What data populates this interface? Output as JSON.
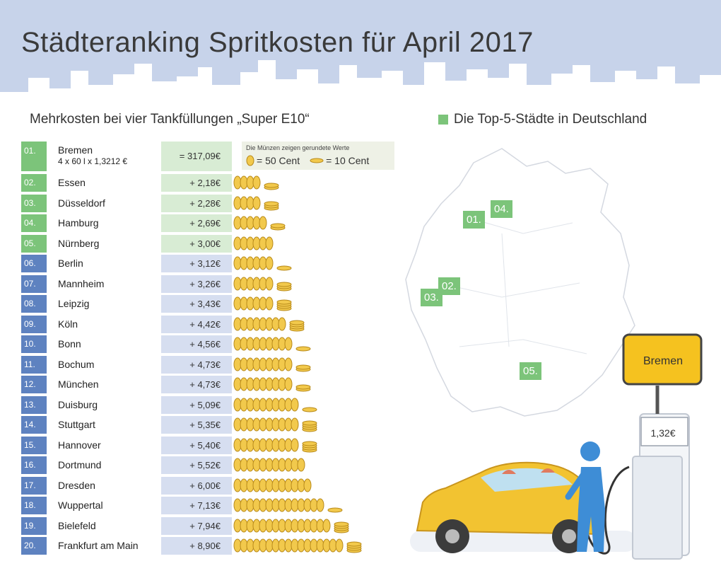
{
  "title": "Städteranking Spritkosten für April 2017",
  "subtitle": "Mehrkosten bei vier Tankfüllungen „Super E10“",
  "legend": "Die Top-5-Städte in Deutschland",
  "coin_note": {
    "small": "Die Münzen zeigen gerundete Werte",
    "big_coin": "= 50 Cent",
    "small_coin": "= 10 Cent"
  },
  "sign": "Bremen",
  "pump_price": "1,32€",
  "colors": {
    "top5": "#7cc47a",
    "top5_light": "#d8ecd4",
    "rest": "#5e82c0",
    "rest_light": "#d6def0",
    "coin": "#f2c94c"
  },
  "chart_data": {
    "type": "table",
    "title": "Städteranking Spritkosten für April 2017",
    "subtitle": "Mehrkosten bei vier Tankfüllungen „Super E10“",
    "first": {
      "rank": "01.",
      "city": "Bremen",
      "formula": "4 x 60 l x 1,3212 €",
      "value": "= 317,09€",
      "amount": 317.09
    },
    "rows": [
      {
        "rank": "02.",
        "city": "Essen",
        "value": "+ 2,18€",
        "amount": 2.18,
        "top5": true
      },
      {
        "rank": "03.",
        "city": "Düsseldorf",
        "value": "+ 2,28€",
        "amount": 2.28,
        "top5": true
      },
      {
        "rank": "04.",
        "city": "Hamburg",
        "value": "+ 2,69€",
        "amount": 2.69,
        "top5": true
      },
      {
        "rank": "05.",
        "city": "Nürnberg",
        "value": "+ 3,00€",
        "amount": 3.0,
        "top5": true
      },
      {
        "rank": "06.",
        "city": "Berlin",
        "value": "+ 3,12€",
        "amount": 3.12,
        "top5": false
      },
      {
        "rank": "07.",
        "city": "Mannheim",
        "value": "+ 3,26€",
        "amount": 3.26,
        "top5": false
      },
      {
        "rank": "08.",
        "city": "Leipzig",
        "value": "+ 3,43€",
        "amount": 3.43,
        "top5": false
      },
      {
        "rank": "09.",
        "city": "Köln",
        "value": "+ 4,42€",
        "amount": 4.42,
        "top5": false
      },
      {
        "rank": "10.",
        "city": "Bonn",
        "value": "+ 4,56€",
        "amount": 4.56,
        "top5": false
      },
      {
        "rank": "11.",
        "city": "Bochum",
        "value": "+ 4,73€",
        "amount": 4.73,
        "top5": false
      },
      {
        "rank": "12.",
        "city": "München",
        "value": "+ 4,73€",
        "amount": 4.73,
        "top5": false
      },
      {
        "rank": "13.",
        "city": "Duisburg",
        "value": "+ 5,09€",
        "amount": 5.09,
        "top5": false
      },
      {
        "rank": "14.",
        "city": "Stuttgart",
        "value": "+ 5,35€",
        "amount": 5.35,
        "top5": false
      },
      {
        "rank": "15.",
        "city": "Hannover",
        "value": "+ 5,40€",
        "amount": 5.4,
        "top5": false
      },
      {
        "rank": "16.",
        "city": "Dortmund",
        "value": "+ 5,52€",
        "amount": 5.52,
        "top5": false
      },
      {
        "rank": "17.",
        "city": "Dresden",
        "value": "+ 6,00€",
        "amount": 6.0,
        "top5": false
      },
      {
        "rank": "18.",
        "city": "Wuppertal",
        "value": "+ 7,13€",
        "amount": 7.13,
        "top5": false
      },
      {
        "rank": "19.",
        "city": "Bielefeld",
        "value": "+ 7,94€",
        "amount": 7.94,
        "top5": false
      },
      {
        "rank": "20.",
        "city": "Frankfurt am Main",
        "value": "+ 8,90€",
        "amount": 8.9,
        "top5": false
      }
    ],
    "map_labels": [
      "01.",
      "04.",
      "02.",
      "03.",
      "05."
    ]
  }
}
